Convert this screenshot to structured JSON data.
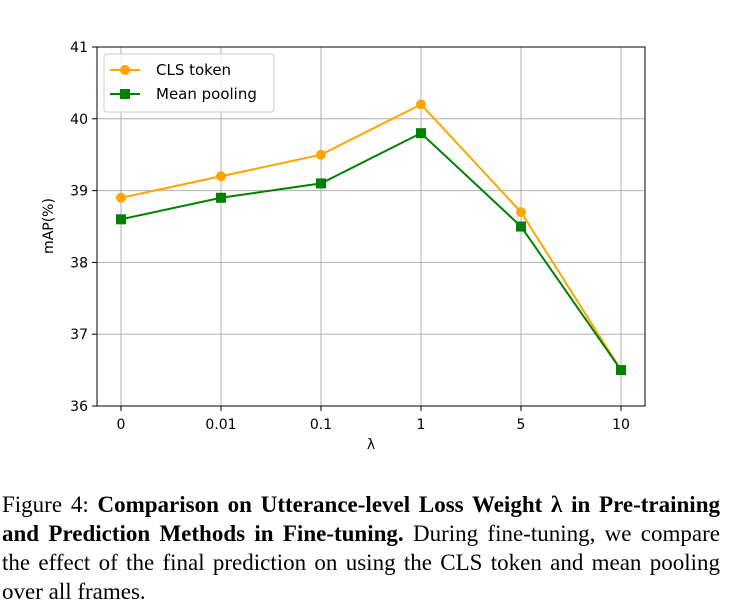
{
  "chart_data": {
    "type": "line",
    "title": "",
    "xlabel": "λ",
    "ylabel": "mAP(%)",
    "categories": [
      "0",
      "0.01",
      "0.1",
      "1",
      "5",
      "10"
    ],
    "ylim": [
      36,
      41
    ],
    "yticks": [
      "36",
      "37",
      "38",
      "39",
      "40",
      "41"
    ],
    "grid": true,
    "legend_position": "top-left",
    "series": [
      {
        "name": "CLS token",
        "values": [
          38.9,
          39.2,
          39.5,
          40.2,
          38.7,
          36.5
        ],
        "color": "#ffa500",
        "marker": "circle"
      },
      {
        "name": "Mean pooling",
        "values": [
          38.6,
          38.9,
          39.1,
          39.8,
          38.5,
          36.5
        ],
        "color": "#008000",
        "marker": "square"
      }
    ]
  },
  "caption": {
    "prefix": "Figure 4: ",
    "bold": "Comparison on Utterance-level Loss Weight λ in Pre-training and Prediction Methods in Fine-tuning.",
    "rest": " During fine-tuning, we compare the effect of the final prediction on using the CLS token and mean pooling over all frames."
  }
}
